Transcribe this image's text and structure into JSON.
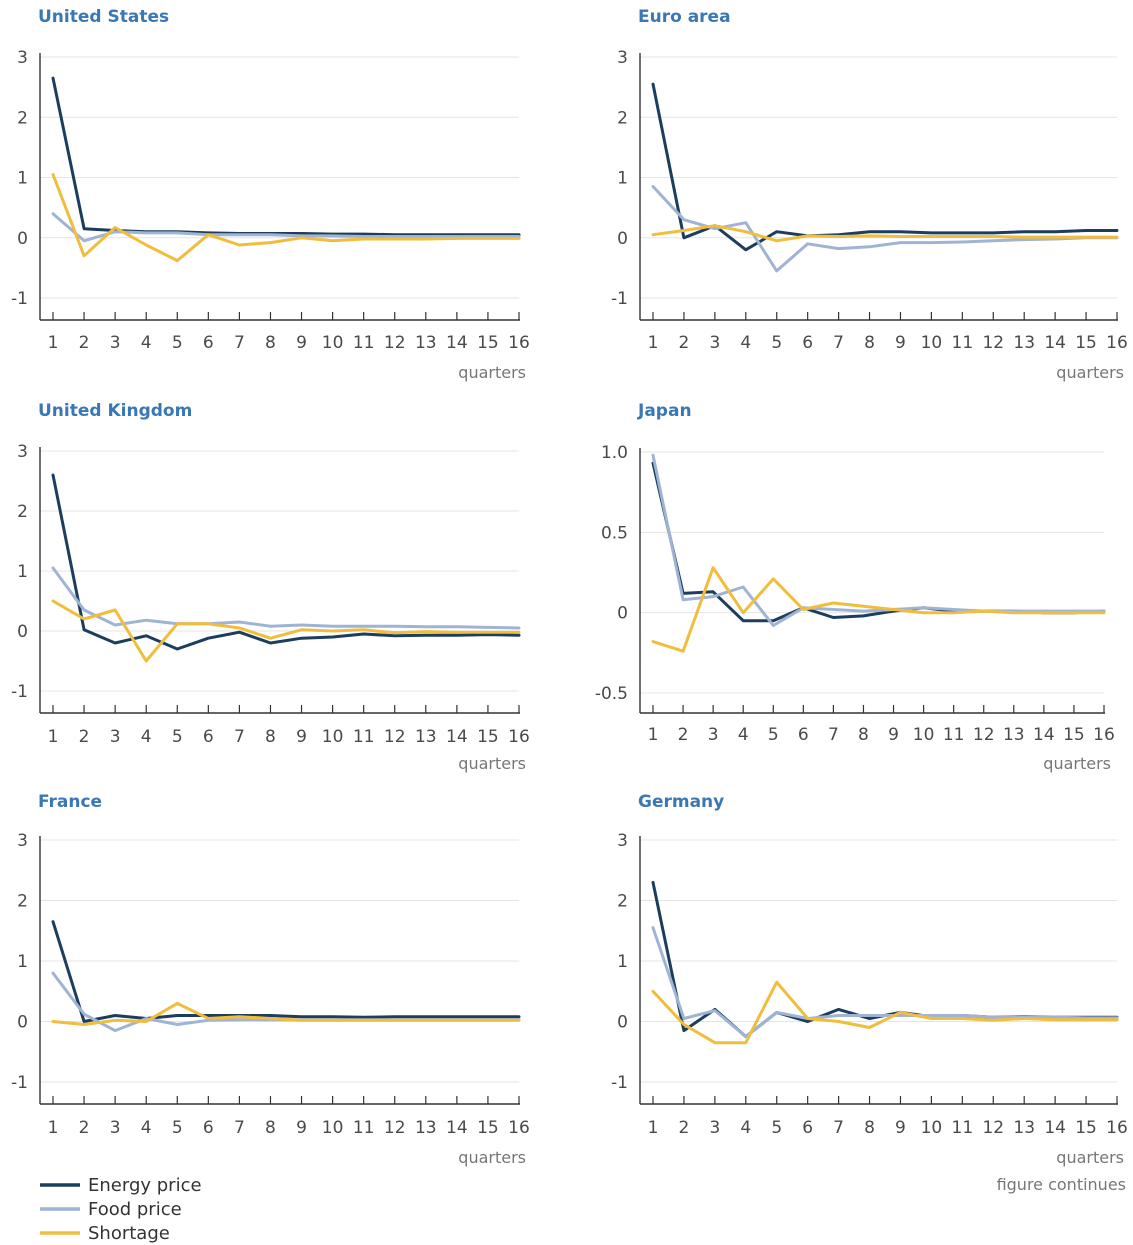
{
  "colors": {
    "energy": "#1c3d5e",
    "food": "#9fb4d5",
    "shortage": "#f0bd3c",
    "title": "#3a78b5"
  },
  "legend": [
    {
      "key": "energy",
      "label": "Energy price"
    },
    {
      "key": "food",
      "label": "Food price"
    },
    {
      "key": "shortage",
      "label": "Shortage"
    }
  ],
  "note": "figure continues",
  "chart_data": [
    {
      "type": "line",
      "title": "United States",
      "xlabel": "quarters",
      "ylabel": "",
      "x": [
        1,
        2,
        3,
        4,
        5,
        6,
        7,
        8,
        9,
        10,
        11,
        12,
        13,
        14,
        15,
        16
      ],
      "ylim": [
        -1,
        3
      ],
      "yticks": [
        "3",
        "2",
        "1",
        "0",
        "-1"
      ],
      "ytick_values": [
        3,
        2,
        1,
        0,
        -1
      ],
      "series": [
        {
          "key": "energy",
          "name": "Energy price",
          "values": [
            2.65,
            0.15,
            0.12,
            0.1,
            0.1,
            0.08,
            0.07,
            0.07,
            0.07,
            0.06,
            0.06,
            0.05,
            0.05,
            0.05,
            0.05,
            0.05
          ]
        },
        {
          "key": "food",
          "name": "Food price",
          "values": [
            0.4,
            -0.05,
            0.1,
            0.08,
            0.08,
            0.05,
            0.05,
            0.05,
            0.03,
            0.03,
            0.02,
            0.02,
            0.02,
            0.02,
            0.02,
            0.02
          ]
        },
        {
          "key": "shortage",
          "name": "Shortage",
          "values": [
            1.05,
            -0.3,
            0.17,
            -0.12,
            -0.38,
            0.05,
            -0.12,
            -0.08,
            0.0,
            -0.05,
            -0.02,
            -0.02,
            -0.02,
            -0.01,
            -0.01,
            -0.01
          ]
        }
      ]
    },
    {
      "type": "line",
      "title": "Euro area",
      "xlabel": "quarters",
      "ylabel": "",
      "x": [
        1,
        2,
        3,
        4,
        5,
        6,
        7,
        8,
        9,
        10,
        11,
        12,
        13,
        14,
        15,
        16
      ],
      "ylim": [
        -1,
        3
      ],
      "yticks": [
        "3",
        "2",
        "1",
        "0",
        "-1"
      ],
      "ytick_values": [
        3,
        2,
        1,
        0,
        -1
      ],
      "series": [
        {
          "key": "energy",
          "name": "Energy price",
          "values": [
            2.55,
            0.0,
            0.2,
            -0.2,
            0.1,
            0.03,
            0.05,
            0.1,
            0.1,
            0.08,
            0.08,
            0.08,
            0.1,
            0.1,
            0.12,
            0.12
          ]
        },
        {
          "key": "food",
          "name": "Food price",
          "values": [
            0.85,
            0.3,
            0.15,
            0.25,
            -0.55,
            -0.1,
            -0.18,
            -0.15,
            -0.08,
            -0.08,
            -0.07,
            -0.05,
            -0.03,
            -0.02,
            0.0,
            0.0
          ]
        },
        {
          "key": "shortage",
          "name": "Shortage",
          "values": [
            0.05,
            0.12,
            0.2,
            0.1,
            -0.05,
            0.03,
            0.02,
            0.03,
            0.02,
            0.02,
            0.02,
            0.02,
            0.01,
            0.01,
            0.01,
            0.01
          ]
        }
      ]
    },
    {
      "type": "line",
      "title": "United Kingdom",
      "xlabel": "quarters",
      "ylabel": "",
      "x": [
        1,
        2,
        3,
        4,
        5,
        6,
        7,
        8,
        9,
        10,
        11,
        12,
        13,
        14,
        15,
        16
      ],
      "ylim": [
        -1,
        3
      ],
      "yticks": [
        "3",
        "2",
        "1",
        "0",
        "-1"
      ],
      "ytick_values": [
        3,
        2,
        1,
        0,
        -1
      ],
      "series": [
        {
          "key": "energy",
          "name": "Energy price",
          "values": [
            2.6,
            0.02,
            -0.2,
            -0.08,
            -0.3,
            -0.12,
            -0.02,
            -0.2,
            -0.12,
            -0.1,
            -0.05,
            -0.08,
            -0.07,
            -0.07,
            -0.06,
            -0.07
          ]
        },
        {
          "key": "food",
          "name": "Food price",
          "values": [
            1.05,
            0.35,
            0.1,
            0.18,
            0.12,
            0.12,
            0.15,
            0.08,
            0.1,
            0.08,
            0.08,
            0.08,
            0.07,
            0.07,
            0.06,
            0.05
          ]
        },
        {
          "key": "shortage",
          "name": "Shortage",
          "values": [
            0.5,
            0.2,
            0.35,
            -0.5,
            0.12,
            0.12,
            0.05,
            -0.12,
            0.02,
            0.0,
            0.02,
            -0.03,
            -0.01,
            -0.02,
            -0.02,
            -0.02
          ]
        }
      ]
    },
    {
      "type": "line",
      "title": "Japan",
      "xlabel": "quarters",
      "ylabel": "",
      "x": [
        1,
        2,
        3,
        4,
        5,
        6,
        7,
        8,
        9,
        10,
        11,
        12,
        13,
        14,
        15,
        16
      ],
      "ylim": [
        -0.5,
        1.0
      ],
      "yticks": [
        "1.0",
        "0.5",
        "0",
        "-0.5"
      ],
      "ytick_values": [
        1.0,
        0.5,
        0,
        -0.5
      ],
      "series": [
        {
          "key": "energy",
          "name": "Energy price",
          "values": [
            0.93,
            0.12,
            0.13,
            -0.05,
            -0.05,
            0.03,
            -0.03,
            -0.02,
            0.01,
            0.03,
            0.01,
            0.01,
            0.01,
            0.0,
            0.0,
            0.01
          ]
        },
        {
          "key": "food",
          "name": "Food price",
          "values": [
            0.98,
            0.08,
            0.1,
            0.16,
            -0.08,
            0.03,
            0.02,
            0.01,
            0.02,
            0.03,
            0.02,
            0.01,
            0.01,
            0.01,
            0.01,
            0.01
          ]
        },
        {
          "key": "shortage",
          "name": "Shortage",
          "values": [
            -0.18,
            -0.24,
            0.28,
            0.0,
            0.21,
            0.02,
            0.06,
            0.04,
            0.02,
            0.0,
            0.0,
            0.01,
            0.0,
            0.0,
            0.0,
            0.0
          ]
        }
      ]
    },
    {
      "type": "line",
      "title": "France",
      "xlabel": "quarters",
      "ylabel": "",
      "x": [
        1,
        2,
        3,
        4,
        5,
        6,
        7,
        8,
        9,
        10,
        11,
        12,
        13,
        14,
        15,
        16
      ],
      "ylim": [
        -1,
        3
      ],
      "yticks": [
        "3",
        "2",
        "1",
        "0",
        "-1"
      ],
      "ytick_values": [
        3,
        2,
        1,
        0,
        -1
      ],
      "series": [
        {
          "key": "energy",
          "name": "Energy price",
          "values": [
            1.65,
            0.0,
            0.1,
            0.05,
            0.1,
            0.1,
            0.1,
            0.1,
            0.08,
            0.08,
            0.07,
            0.08,
            0.08,
            0.08,
            0.08,
            0.08
          ]
        },
        {
          "key": "food",
          "name": "Food price",
          "values": [
            0.8,
            0.12,
            -0.15,
            0.05,
            -0.05,
            0.02,
            0.03,
            0.03,
            0.03,
            0.03,
            0.03,
            0.03,
            0.03,
            0.03,
            0.03,
            0.03
          ]
        },
        {
          "key": "shortage",
          "name": "Shortage",
          "values": [
            0.0,
            -0.05,
            0.02,
            0.0,
            0.3,
            0.05,
            0.08,
            0.05,
            0.02,
            0.02,
            0.02,
            0.02,
            0.02,
            0.02,
            0.02,
            0.02
          ]
        }
      ]
    },
    {
      "type": "line",
      "title": "Germany",
      "xlabel": "quarters",
      "ylabel": "",
      "x": [
        1,
        2,
        3,
        4,
        5,
        6,
        7,
        8,
        9,
        10,
        11,
        12,
        13,
        14,
        15,
        16
      ],
      "ylim": [
        -1,
        3
      ],
      "yticks": [
        "3",
        "2",
        "1",
        "0",
        "-1"
      ],
      "ytick_values": [
        3,
        2,
        1,
        0,
        -1
      ],
      "series": [
        {
          "key": "energy",
          "name": "Energy price",
          "values": [
            2.3,
            -0.15,
            0.2,
            -0.25,
            0.15,
            0.0,
            0.2,
            0.05,
            0.15,
            0.08,
            0.1,
            0.07,
            0.08,
            0.07,
            0.07,
            0.07
          ]
        },
        {
          "key": "food",
          "name": "Food price",
          "values": [
            1.55,
            0.05,
            0.18,
            -0.25,
            0.15,
            0.05,
            0.1,
            0.1,
            0.1,
            0.1,
            0.1,
            0.07,
            0.07,
            0.07,
            0.06,
            0.06
          ]
        },
        {
          "key": "shortage",
          "name": "Shortage",
          "values": [
            0.5,
            -0.05,
            -0.35,
            -0.35,
            0.65,
            0.05,
            0.0,
            -0.1,
            0.15,
            0.05,
            0.05,
            0.02,
            0.05,
            0.03,
            0.03,
            0.03
          ]
        }
      ]
    }
  ]
}
